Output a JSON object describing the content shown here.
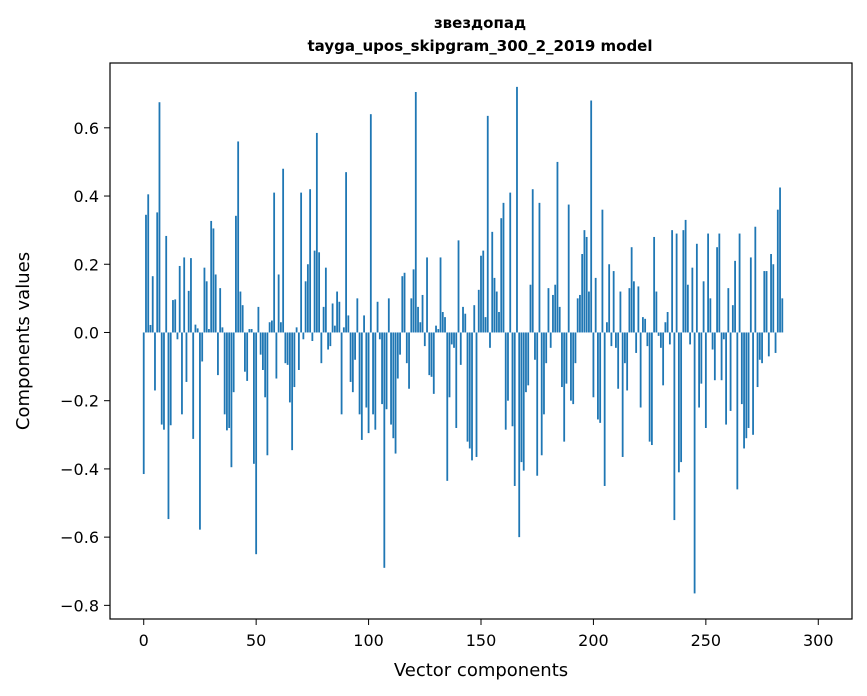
{
  "chart_data": {
    "type": "bar",
    "title": "звездопад",
    "subtitle": "tayga_upos_skipgram_300_2_2019 model",
    "xlabel": "Vector components",
    "ylabel": "Components values",
    "xlim": [
      -15,
      315
    ],
    "ylim": [
      -0.84,
      0.79
    ],
    "xticks": [
      0,
      50,
      100,
      150,
      200,
      250,
      300
    ],
    "xtick_labels": [
      "0",
      "50",
      "100",
      "150",
      "200",
      "250",
      "300"
    ],
    "yticks": [
      -0.8,
      -0.6,
      -0.4,
      -0.2,
      0.0,
      0.2,
      0.4,
      0.6
    ],
    "ytick_labels": [
      "−0.8",
      "−0.6",
      "−0.4",
      "−0.2",
      "0.0",
      "0.2",
      "0.4",
      "0.6"
    ],
    "grid": false,
    "bar_color": "#1f77b4",
    "x_start": 0,
    "values": [
      -0.415,
      0.345,
      0.405,
      0.022,
      0.165,
      -0.17,
      0.352,
      0.675,
      -0.27,
      -0.285,
      0.283,
      -0.547,
      -0.272,
      0.095,
      0.097,
      -0.02,
      0.195,
      -0.24,
      0.22,
      -0.145,
      0.122,
      0.218,
      -0.312,
      0.023,
      0.012,
      -0.578,
      -0.085,
      0.19,
      0.15,
      0.01,
      0.327,
      0.305,
      0.17,
      -0.125,
      0.13,
      0.015,
      -0.24,
      -0.287,
      -0.28,
      -0.395,
      -0.175,
      0.342,
      0.56,
      0.12,
      0.08,
      -0.115,
      -0.142,
      0.01,
      0.01,
      -0.385,
      -0.65,
      0.075,
      -0.065,
      -0.11,
      -0.19,
      -0.36,
      0.03,
      0.035,
      0.41,
      -0.135,
      0.17,
      0.03,
      0.48,
      -0.09,
      -0.095,
      -0.205,
      -0.345,
      -0.16,
      0.015,
      -0.11,
      0.41,
      -0.02,
      0.15,
      0.2,
      0.42,
      -0.025,
      0.24,
      0.585,
      0.235,
      -0.09,
      0.075,
      0.19,
      -0.05,
      -0.04,
      0.085,
      0.02,
      0.12,
      0.09,
      -0.24,
      0.015,
      0.47,
      0.05,
      -0.145,
      -0.175,
      -0.08,
      0.1,
      -0.24,
      -0.315,
      0.05,
      -0.22,
      -0.295,
      0.64,
      -0.24,
      -0.285,
      0.09,
      -0.02,
      -0.21,
      -0.69,
      -0.225,
      0.1,
      -0.27,
      -0.31,
      -0.355,
      -0.135,
      -0.065,
      0.165,
      0.175,
      -0.09,
      -0.165,
      0.1,
      0.185,
      0.705,
      0.075,
      0.03,
      0.11,
      -0.04,
      0.22,
      -0.125,
      -0.13,
      -0.18,
      0.02,
      0.01,
      0.22,
      0.06,
      0.045,
      -0.435,
      -0.19,
      -0.035,
      -0.045,
      -0.28,
      0.27,
      -0.095,
      0.075,
      0.055,
      -0.32,
      -0.34,
      -0.375,
      0.08,
      -0.365,
      0.125,
      0.225,
      0.24,
      0.045,
      0.635,
      -0.045,
      0.295,
      0.16,
      0.12,
      0.06,
      0.335,
      0.38,
      -0.285,
      -0.2,
      0.41,
      -0.275,
      -0.45,
      0.72,
      -0.6,
      -0.38,
      -0.405,
      -0.175,
      -0.155,
      0.14,
      0.42,
      -0.08,
      -0.42,
      0.38,
      -0.36,
      -0.24,
      -0.09,
      0.13,
      -0.045,
      0.11,
      0.14,
      0.5,
      0.075,
      -0.16,
      -0.32,
      -0.15,
      0.375,
      -0.2,
      -0.21,
      -0.09,
      0.1,
      0.11,
      0.23,
      0.3,
      0.28,
      0.12,
      0.68,
      -0.19,
      0.16,
      -0.255,
      -0.265,
      0.36,
      -0.45,
      0.03,
      0.2,
      -0.04,
      0.18,
      -0.045,
      -0.165,
      0.12,
      -0.365,
      -0.09,
      -0.17,
      0.13,
      0.25,
      0.15,
      -0.06,
      0.135,
      -0.22,
      0.045,
      0.04,
      -0.04,
      -0.32,
      -0.33,
      0.28,
      0.12,
      -0.01,
      -0.045,
      -0.155,
      0.03,
      0.06,
      -0.035,
      0.3,
      -0.55,
      0.29,
      -0.41,
      -0.38,
      0.3,
      0.33,
      0.14,
      -0.035,
      0.19,
      -0.765,
      0.26,
      -0.22,
      -0.15,
      0.15,
      -0.28,
      0.29,
      0.1,
      -0.05,
      -0.14,
      0.25,
      0.29,
      -0.14,
      -0.02,
      -0.27,
      0.13,
      -0.23,
      0.08,
      0.21,
      -0.46,
      0.29,
      -0.21,
      -0.34,
      -0.31,
      -0.28,
      0.22,
      -0.3,
      0.31,
      -0.16,
      -0.08,
      -0.09,
      0.18,
      0.18,
      -0.07,
      0.23,
      0.2,
      -0.06,
      0.36,
      0.425,
      0.1
    ]
  }
}
